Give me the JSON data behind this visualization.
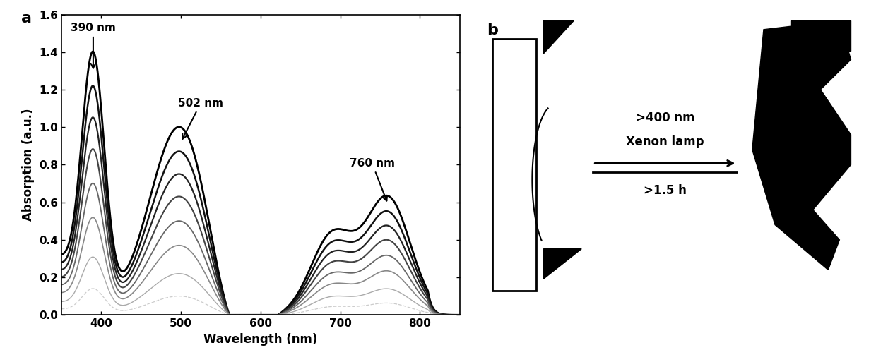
{
  "title_a": "a",
  "title_b": "b",
  "xlabel": "Wavelength (nm)",
  "ylabel": "Absorption (a.u.)",
  "xlim": [
    350,
    850
  ],
  "ylim": [
    0.0,
    1.6
  ],
  "yticks": [
    0.0,
    0.2,
    0.4,
    0.6,
    0.8,
    1.0,
    1.2,
    1.4,
    1.6
  ],
  "xticks": [
    400,
    500,
    600,
    700,
    800
  ],
  "react_text1": ">400 nm",
  "react_text2": "Xenon lamp",
  "react_text3": ">1.5 h",
  "curves": [
    {
      "scale": 1.0,
      "color": "#000000",
      "lw": 2.0
    },
    {
      "scale": 0.87,
      "color": "#111111",
      "lw": 1.8
    },
    {
      "scale": 0.75,
      "color": "#222222",
      "lw": 1.6
    },
    {
      "scale": 0.63,
      "color": "#444444",
      "lw": 1.5
    },
    {
      "scale": 0.5,
      "color": "#666666",
      "lw": 1.3
    },
    {
      "scale": 0.37,
      "color": "#888888",
      "lw": 1.2
    },
    {
      "scale": 0.22,
      "color": "#aaaaaa",
      "lw": 1.0
    },
    {
      "scale": 0.1,
      "color": "#cccccc",
      "lw": 0.9,
      "dashed": true
    }
  ]
}
